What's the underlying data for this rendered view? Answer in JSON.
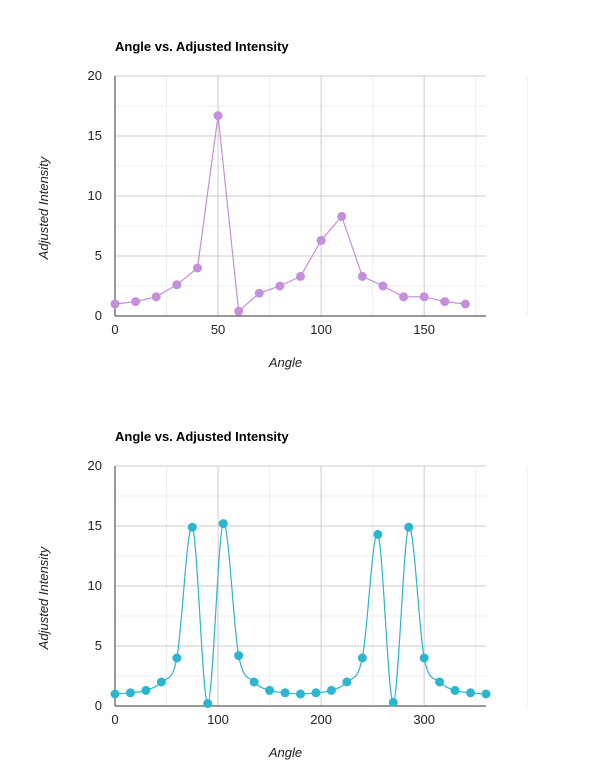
{
  "chart_data": [
    {
      "type": "line",
      "title": "Angle vs. Adjusted Intensity",
      "xlabel": "Angle",
      "ylabel": "Adjusted Intensity",
      "xlim": [
        0,
        180
      ],
      "ylim": [
        0,
        20
      ],
      "x_ticks": [
        0,
        50,
        100,
        150
      ],
      "y_ticks": [
        0,
        5,
        10,
        15,
        20
      ],
      "grid": true,
      "smooth": false,
      "color": "#C58FDB",
      "series": [
        {
          "x": [
            0,
            10,
            20,
            30,
            40,
            50,
            60,
            70,
            80,
            90,
            100,
            110,
            120,
            130,
            140,
            150,
            160,
            170
          ],
          "y": [
            1.0,
            1.2,
            1.6,
            2.6,
            4.0,
            16.7,
            0.4,
            1.9,
            2.5,
            3.3,
            6.3,
            8.3,
            3.3,
            2.5,
            1.6,
            1.6,
            1.2,
            1.0
          ]
        }
      ]
    },
    {
      "type": "line",
      "title": "Angle vs. Adjusted Intensity",
      "xlabel": "Angle",
      "ylabel": "Adjusted Intensity",
      "xlim": [
        0,
        360
      ],
      "ylim": [
        0,
        20
      ],
      "x_ticks": [
        0,
        100,
        200,
        300
      ],
      "y_ticks": [
        0,
        5,
        10,
        15,
        20
      ],
      "grid": true,
      "smooth": true,
      "color": "#2BB5CE",
      "series": [
        {
          "x": [
            0,
            15,
            30,
            45,
            60,
            75,
            90,
            105,
            120,
            135,
            150,
            165,
            180,
            195,
            210,
            225,
            240,
            255,
            270,
            285,
            300,
            315,
            330,
            345,
            360
          ],
          "y": [
            1.0,
            1.1,
            1.3,
            2.0,
            4.0,
            14.9,
            0.2,
            15.2,
            4.2,
            2.0,
            1.3,
            1.1,
            1.0,
            1.1,
            1.3,
            2.0,
            4.0,
            14.3,
            0.3,
            14.9,
            4.0,
            2.0,
            1.3,
            1.1,
            1.0
          ]
        }
      ]
    }
  ]
}
